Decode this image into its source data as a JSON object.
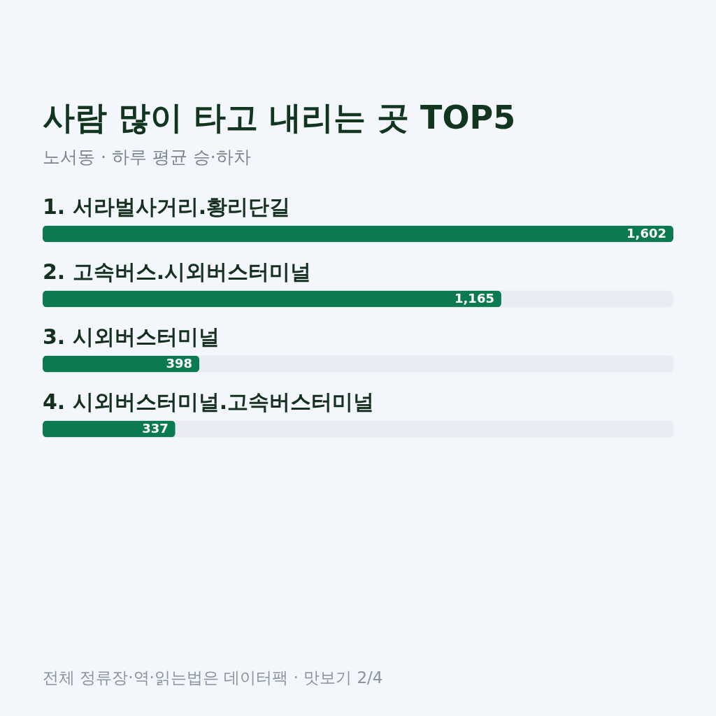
{
  "chart_data": {
    "type": "bar",
    "orientation": "horizontal",
    "title": "사람 많이 타고 내리는 곳 TOP5",
    "subtitle": "노서동 · 하루 평균 승·하차",
    "categories": [
      "1. 서라벌사거리.황리단길",
      "2. 고속버스.시외버스터미널",
      "3. 시외버스터미널",
      "4. 시외버스터미널.고속버스터미널"
    ],
    "values": [
      1602,
      1165,
      398,
      337
    ],
    "value_labels": [
      "1,602",
      "1,165",
      "398",
      "337"
    ],
    "color": "#0b7a50",
    "annotations": [
      "전체 정류장·역·읽는법은 데이터팩 · 맛보기 2/4"
    ]
  }
}
